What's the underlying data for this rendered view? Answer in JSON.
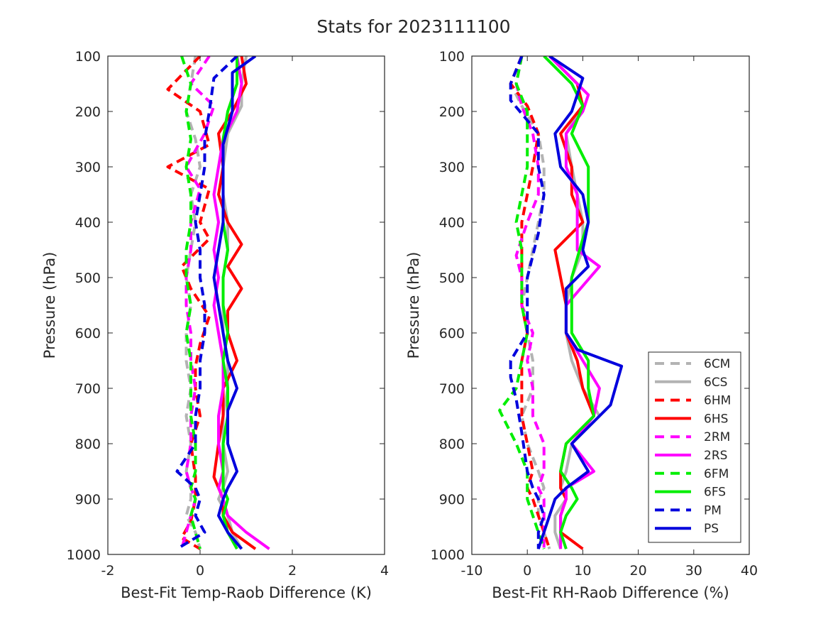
{
  "figure": {
    "title": "Stats for 2023111100"
  },
  "chart_data": [
    {
      "type": "line",
      "xlabel": "Best-Fit Temp-Raob Difference (K)",
      "ylabel": "Pressure (hPa)",
      "xlim": [
        -2,
        4
      ],
      "ylim": [
        100,
        1000
      ],
      "y_reversed": true,
      "xticks": [
        -2,
        0,
        2,
        4
      ],
      "yticks": [
        100,
        200,
        300,
        400,
        500,
        600,
        700,
        800,
        900,
        1000
      ],
      "grid": false,
      "series": [
        {
          "name": "6CM",
          "color": "#b3b3b3",
          "dashed": true,
          "x": [
            -0.1,
            -0.2,
            -0.3,
            -0.1,
            0.0,
            -0.2,
            -0.1,
            -0.2,
            -0.3,
            -0.2,
            -0.3,
            -0.3,
            -0.2,
            -0.3,
            -0.2,
            -0.3,
            -0.2,
            -0.2,
            -0.3,
            -0.1,
            0.0
          ],
          "y": [
            100,
            150,
            200,
            250,
            300,
            350,
            400,
            450,
            500,
            550,
            600,
            650,
            700,
            750,
            800,
            850,
            880,
            900,
            930,
            960,
            990
          ]
        },
        {
          "name": "6CS",
          "color": "#b3b3b3",
          "dashed": false,
          "x": [
            1.0,
            0.9,
            0.9,
            0.6,
            0.5,
            0.5,
            0.6,
            0.6,
            0.5,
            0.5,
            0.5,
            0.6,
            0.6,
            0.5,
            0.5,
            0.6,
            0.5,
            0.4,
            0.6,
            0.7,
            0.9
          ],
          "y": [
            100,
            150,
            190,
            240,
            300,
            350,
            400,
            450,
            500,
            550,
            600,
            650,
            700,
            750,
            800,
            850,
            880,
            900,
            930,
            960,
            990
          ]
        },
        {
          "name": "6HM",
          "color": "#ff0000",
          "dashed": true,
          "x": [
            0.0,
            -0.7,
            0.0,
            0.2,
            -0.7,
            0.2,
            0.0,
            0.2,
            -0.4,
            -0.2,
            0.2,
            0.0,
            -0.1,
            -0.1,
            0.0,
            -0.2,
            -0.1,
            -0.1,
            -0.2,
            -0.4,
            0.0
          ],
          "y": [
            100,
            160,
            200,
            260,
            300,
            340,
            400,
            430,
            480,
            520,
            570,
            620,
            660,
            700,
            750,
            800,
            860,
            900,
            940,
            970,
            990
          ]
        },
        {
          "name": "6HS",
          "color": "#ff0000",
          "dashed": false,
          "x": [
            0.9,
            1.0,
            0.7,
            0.4,
            0.5,
            0.4,
            0.6,
            0.9,
            0.6,
            0.9,
            0.6,
            0.6,
            0.8,
            0.5,
            0.5,
            0.4,
            0.3,
            0.5,
            0.5,
            0.7,
            1.2
          ],
          "y": [
            100,
            150,
            200,
            240,
            300,
            350,
            400,
            440,
            480,
            520,
            560,
            600,
            650,
            700,
            750,
            800,
            860,
            900,
            930,
            960,
            990
          ]
        },
        {
          "name": "2RM",
          "color": "#ff00ff",
          "dashed": true,
          "x": [
            0.2,
            -0.2,
            0.3,
            0.1,
            -0.3,
            0.0,
            -0.2,
            -0.2,
            -0.3,
            -0.3,
            -0.2,
            -0.2,
            -0.1,
            -0.2,
            -0.2,
            -0.3,
            -0.2,
            -0.1,
            -0.2,
            -0.3,
            -0.4
          ],
          "y": [
            100,
            150,
            190,
            240,
            300,
            340,
            400,
            450,
            500,
            550,
            600,
            650,
            700,
            750,
            800,
            850,
            880,
            900,
            930,
            960,
            990
          ]
        },
        {
          "name": "2RS",
          "color": "#ff00ff",
          "dashed": false,
          "x": [
            0.8,
            0.9,
            0.8,
            0.5,
            0.4,
            0.3,
            0.4,
            0.3,
            0.4,
            0.3,
            0.4,
            0.5,
            0.5,
            0.4,
            0.4,
            0.5,
            0.4,
            0.5,
            0.6,
            1.0,
            1.5
          ],
          "y": [
            100,
            150,
            200,
            250,
            300,
            350,
            400,
            450,
            500,
            550,
            600,
            650,
            700,
            750,
            800,
            850,
            880,
            900,
            930,
            960,
            990
          ]
        },
        {
          "name": "6FM",
          "color": "#00ee00",
          "dashed": true,
          "x": [
            -0.4,
            -0.2,
            -0.3,
            -0.2,
            -0.3,
            -0.2,
            -0.2,
            -0.3,
            -0.3,
            -0.2,
            -0.3,
            -0.2,
            -0.2,
            -0.2,
            -0.1,
            -0.1,
            -0.2,
            -0.1,
            -0.2,
            -0.1,
            0.0
          ],
          "y": [
            100,
            150,
            200,
            250,
            300,
            350,
            400,
            450,
            500,
            550,
            600,
            650,
            700,
            750,
            800,
            850,
            880,
            900,
            930,
            960,
            990
          ]
        },
        {
          "name": "6FS",
          "color": "#00ee00",
          "dashed": false,
          "x": [
            0.8,
            0.8,
            0.6,
            0.5,
            0.5,
            0.5,
            0.5,
            0.6,
            0.5,
            0.5,
            0.6,
            0.5,
            0.6,
            0.6,
            0.5,
            0.5,
            0.5,
            0.6,
            0.5,
            0.6,
            0.8
          ],
          "y": [
            100,
            150,
            200,
            250,
            300,
            350,
            400,
            450,
            500,
            550,
            600,
            650,
            700,
            750,
            800,
            850,
            880,
            900,
            930,
            960,
            990
          ]
        },
        {
          "name": "PM",
          "color": "#0000dd",
          "dashed": true,
          "x": [
            0.8,
            0.3,
            0.2,
            0.1,
            0.1,
            0.0,
            -0.1,
            0.0,
            0.0,
            0.1,
            0.1,
            0.0,
            0.0,
            -0.1,
            -0.1,
            -0.5,
            -0.1,
            0.0,
            -0.1,
            0.1,
            -0.5
          ],
          "y": [
            100,
            140,
            200,
            250,
            300,
            350,
            400,
            450,
            500,
            550,
            600,
            650,
            700,
            750,
            800,
            850,
            880,
            900,
            930,
            960,
            990
          ]
        },
        {
          "name": "PS",
          "color": "#0000dd",
          "dashed": false,
          "x": [
            1.2,
            0.7,
            0.7,
            0.5,
            0.5,
            0.5,
            0.5,
            0.4,
            0.3,
            0.4,
            0.5,
            0.6,
            0.8,
            0.6,
            0.6,
            0.8,
            0.6,
            0.5,
            0.4,
            0.6,
            0.9
          ],
          "y": [
            100,
            130,
            200,
            260,
            300,
            350,
            400,
            450,
            500,
            550,
            600,
            650,
            700,
            740,
            800,
            850,
            880,
            900,
            930,
            960,
            990
          ]
        }
      ]
    },
    {
      "type": "line",
      "xlabel": "Best-Fit RH-Raob Difference (%)",
      "ylabel": "Pressure (hPa)",
      "xlim": [
        -10,
        40
      ],
      "ylim": [
        100,
        1000
      ],
      "y_reversed": true,
      "xticks": [
        -10,
        0,
        10,
        20,
        30,
        40
      ],
      "yticks": [
        100,
        200,
        300,
        400,
        500,
        600,
        700,
        800,
        900,
        1000
      ],
      "grid": false,
      "series": [
        {
          "name": "6CM",
          "color": "#b3b3b3",
          "dashed": true,
          "x": [
            -1,
            -3,
            -1,
            2,
            3,
            3,
            2,
            1,
            0,
            -1,
            0,
            1,
            1,
            -1,
            0,
            2,
            3,
            2,
            2,
            3,
            4
          ],
          "y": [
            100,
            150,
            190,
            240,
            300,
            350,
            400,
            450,
            500,
            550,
            600,
            650,
            700,
            750,
            800,
            850,
            880,
            900,
            930,
            960,
            990
          ]
        },
        {
          "name": "6CS",
          "color": "#b3b3b3",
          "dashed": false,
          "x": [
            4,
            9,
            10,
            7,
            8,
            9,
            10,
            10,
            8,
            7,
            7,
            8,
            10,
            13,
            8,
            7,
            6,
            7,
            5,
            5,
            6
          ],
          "y": [
            100,
            150,
            190,
            240,
            300,
            350,
            400,
            450,
            500,
            550,
            600,
            650,
            700,
            750,
            800,
            850,
            880,
            900,
            930,
            960,
            990
          ]
        },
        {
          "name": "6HM",
          "color": "#ff0000",
          "dashed": true,
          "x": [
            -1,
            -3,
            0,
            2,
            1,
            0,
            -1,
            -1,
            -1,
            -1,
            0,
            -1,
            -1,
            -1,
            0,
            1,
            0,
            1,
            2,
            3,
            4
          ],
          "y": [
            100,
            150,
            190,
            240,
            300,
            350,
            400,
            450,
            500,
            550,
            600,
            650,
            700,
            750,
            800,
            850,
            880,
            900,
            930,
            960,
            990
          ]
        },
        {
          "name": "6HS",
          "color": "#ff0000",
          "dashed": false,
          "x": [
            4,
            9,
            10,
            6,
            8,
            8,
            10,
            5,
            6,
            7,
            7,
            9,
            10,
            12,
            7,
            6,
            6,
            7,
            6,
            6,
            10
          ],
          "y": [
            100,
            150,
            190,
            240,
            300,
            350,
            400,
            450,
            500,
            550,
            600,
            650,
            700,
            750,
            800,
            850,
            880,
            900,
            930,
            960,
            990
          ]
        },
        {
          "name": "2RM",
          "color": "#ff00ff",
          "dashed": true,
          "x": [
            -1,
            -2,
            -1,
            1,
            2,
            2,
            0,
            -2,
            -1,
            -1,
            1,
            0,
            1,
            1,
            3,
            3,
            2,
            3,
            3,
            3,
            3
          ],
          "y": [
            100,
            150,
            190,
            240,
            300,
            350,
            400,
            460,
            500,
            550,
            600,
            650,
            700,
            750,
            800,
            850,
            880,
            900,
            930,
            960,
            990
          ]
        },
        {
          "name": "2RS",
          "color": "#ff00ff",
          "dashed": false,
          "x": [
            4,
            11,
            10,
            7,
            7,
            9,
            9,
            9,
            13,
            7,
            7,
            10,
            13,
            12,
            8,
            12,
            7,
            7,
            6,
            6,
            6
          ],
          "y": [
            100,
            170,
            200,
            240,
            300,
            350,
            400,
            450,
            480,
            550,
            600,
            650,
            700,
            750,
            800,
            850,
            880,
            900,
            930,
            960,
            990
          ]
        },
        {
          "name": "6FM",
          "color": "#00ee00",
          "dashed": true,
          "x": [
            -1,
            -2,
            0,
            0,
            0,
            -1,
            -2,
            -1,
            -1,
            -1,
            0,
            -1,
            -2,
            -5,
            -2,
            0,
            0,
            0,
            1,
            2,
            3
          ],
          "y": [
            100,
            150,
            200,
            250,
            300,
            350,
            400,
            450,
            500,
            550,
            600,
            650,
            700,
            740,
            800,
            850,
            880,
            900,
            930,
            960,
            990
          ]
        },
        {
          "name": "6FS",
          "color": "#00ee00",
          "dashed": false,
          "x": [
            3,
            8,
            10,
            8,
            11,
            11,
            11,
            10,
            8,
            8,
            8,
            11,
            11,
            12,
            7,
            6,
            8,
            9,
            7,
            6,
            7
          ],
          "y": [
            100,
            150,
            190,
            240,
            300,
            350,
            400,
            430,
            500,
            550,
            600,
            650,
            700,
            750,
            800,
            850,
            880,
            900,
            930,
            960,
            990
          ]
        },
        {
          "name": "PM",
          "color": "#0000dd",
          "dashed": true,
          "x": [
            -1,
            -3,
            -3,
            2,
            2,
            3,
            2,
            1,
            0,
            0,
            0,
            -3,
            -3,
            -2,
            -1,
            0,
            1,
            2,
            3,
            2,
            2
          ],
          "y": [
            100,
            150,
            180,
            240,
            300,
            350,
            420,
            460,
            500,
            550,
            600,
            650,
            680,
            720,
            780,
            850,
            880,
            900,
            930,
            960,
            990
          ]
        },
        {
          "name": "PS",
          "color": "#0000dd",
          "dashed": false,
          "x": [
            4,
            10,
            8,
            5,
            6,
            10,
            11,
            10,
            11,
            7,
            7,
            9,
            17,
            15,
            8,
            11,
            7,
            5,
            4,
            3,
            2
          ],
          "y": [
            100,
            140,
            200,
            240,
            300,
            350,
            400,
            450,
            480,
            520,
            600,
            630,
            660,
            730,
            800,
            850,
            880,
            900,
            930,
            960,
            990
          ]
        }
      ]
    }
  ]
}
